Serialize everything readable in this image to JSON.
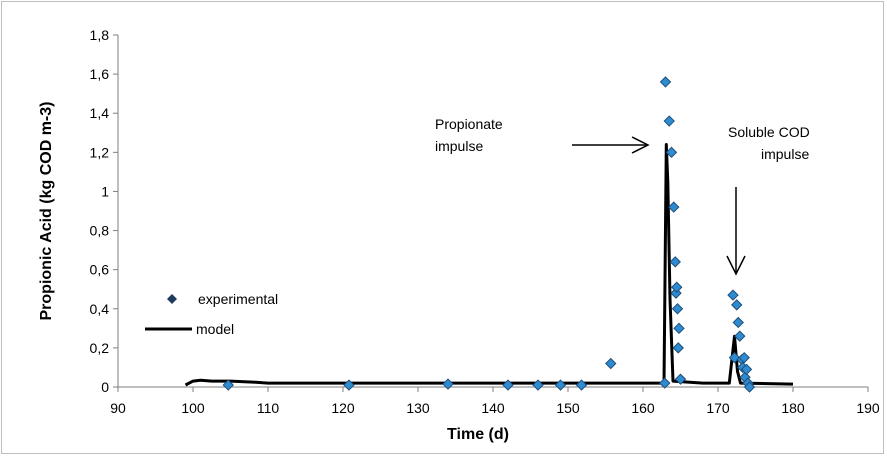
{
  "chart_data": {
    "type": "scatter",
    "title": "",
    "xlabel": "Time (d)",
    "ylabel": "Propionic Acid (kg COD m-3)",
    "xlim": [
      90,
      190
    ],
    "ylim": [
      0,
      1.8
    ],
    "x_ticks": [
      "90",
      "100",
      "110",
      "120",
      "130",
      "140",
      "150",
      "160",
      "170",
      "180",
      "190"
    ],
    "y_ticks": [
      "0",
      "0,2",
      "0,4",
      "0,6",
      "0,8",
      "1",
      "1,2",
      "1,4",
      "1,6",
      "1,8"
    ],
    "grid": false,
    "legend_position": "left-middle",
    "series": [
      {
        "name": "experimental",
        "type": "scatter",
        "marker": "diamond",
        "color": "#2e8bd0",
        "points": [
          [
            104.7,
            0.01
          ],
          [
            120.8,
            0.01
          ],
          [
            134.0,
            0.015
          ],
          [
            142.0,
            0.01
          ],
          [
            146.0,
            0.01
          ],
          [
            149.0,
            0.01
          ],
          [
            151.8,
            0.01
          ],
          [
            155.7,
            0.12
          ],
          [
            162.9,
            0.02
          ],
          [
            163.0,
            1.56
          ],
          [
            163.5,
            1.36
          ],
          [
            163.8,
            1.2
          ],
          [
            164.1,
            0.92
          ],
          [
            164.3,
            0.64
          ],
          [
            164.4,
            0.48
          ],
          [
            164.5,
            0.51
          ],
          [
            164.6,
            0.4
          ],
          [
            164.7,
            0.2
          ],
          [
            164.8,
            0.3
          ],
          [
            165.0,
            0.04
          ],
          [
            172.0,
            0.47
          ],
          [
            172.2,
            0.15
          ],
          [
            172.5,
            0.42
          ],
          [
            172.7,
            0.33
          ],
          [
            172.9,
            0.26
          ],
          [
            173.2,
            0.14
          ],
          [
            173.3,
            0.1
          ],
          [
            173.5,
            0.15
          ],
          [
            173.6,
            0.05
          ],
          [
            173.8,
            0.09
          ],
          [
            174.0,
            0.02
          ],
          [
            174.2,
            0.0
          ]
        ]
      },
      {
        "name": "model",
        "type": "line",
        "color": "#000000",
        "points": [
          [
            99.0,
            0.01
          ],
          [
            100.0,
            0.03
          ],
          [
            101.0,
            0.035
          ],
          [
            102.5,
            0.03
          ],
          [
            105.0,
            0.03
          ],
          [
            108.0,
            0.025
          ],
          [
            110.0,
            0.02
          ],
          [
            120.0,
            0.02
          ],
          [
            140.0,
            0.02
          ],
          [
            160.0,
            0.02
          ],
          [
            162.8,
            0.02
          ],
          [
            163.1,
            1.24
          ],
          [
            163.3,
            1.05
          ],
          [
            163.6,
            0.45
          ],
          [
            164.0,
            0.03
          ],
          [
            168.0,
            0.02
          ],
          [
            171.5,
            0.02
          ],
          [
            172.2,
            0.26
          ],
          [
            172.6,
            0.08
          ],
          [
            173.0,
            0.02
          ],
          [
            180.0,
            0.015
          ]
        ]
      }
    ],
    "annotations": [
      {
        "lines": [
          "Propionate",
          "impulse"
        ],
        "arrow_direction": "right"
      },
      {
        "lines": [
          "Soluble COD",
          "impulse"
        ],
        "arrow_direction": "down"
      }
    ]
  }
}
